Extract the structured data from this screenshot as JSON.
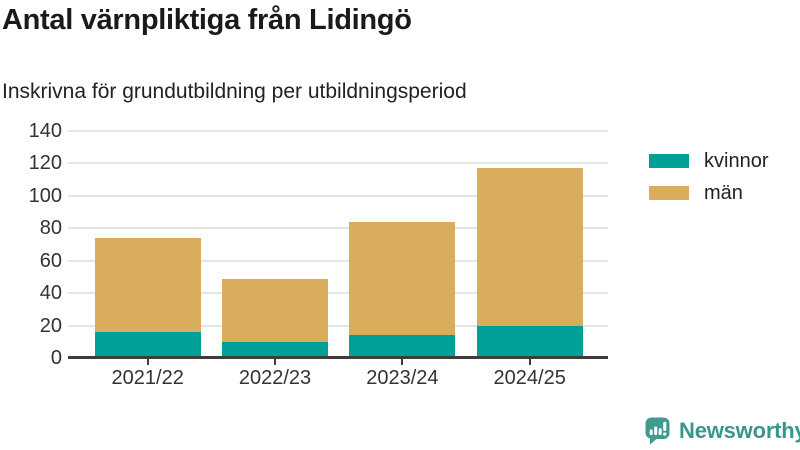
{
  "header": {
    "title": "Antal värnpliktiga från Lidingö",
    "subtitle": "Inskrivna för grundutbildning per utbildningsperiod"
  },
  "chart_data": {
    "type": "bar",
    "stacked": true,
    "title": "Antal värnpliktiga från Lidingö",
    "subtitle": "Inskrivna för grundutbildning per utbildningsperiod",
    "categories": [
      "2021/22",
      "2022/23",
      "2023/24",
      "2024/25"
    ],
    "series": [
      {
        "name": "kvinnor",
        "color": "#00a099",
        "values": [
          16,
          10,
          14,
          20
        ]
      },
      {
        "name": "män",
        "color": "#d9ad5c",
        "values": [
          58,
          39,
          70,
          97
        ]
      }
    ],
    "totals": [
      74,
      49,
      84,
      117
    ],
    "xlabel": "",
    "ylabel": "",
    "ylim": [
      0,
      140
    ],
    "yticks": [
      0,
      20,
      40,
      60,
      80,
      100,
      120,
      140
    ],
    "grid": "horizontal",
    "legend_position": "right"
  },
  "footer": {
    "logo_text": "Newsworthy"
  },
  "colors": {
    "kvinnor": "#00a099",
    "man": "#d9ad5c",
    "axis_line": "#3d3d3d",
    "gridline": "#e5e5e5",
    "text_dark": "#1a1a1a",
    "text_axis": "#333333",
    "logo_teal": "#3a968c"
  }
}
